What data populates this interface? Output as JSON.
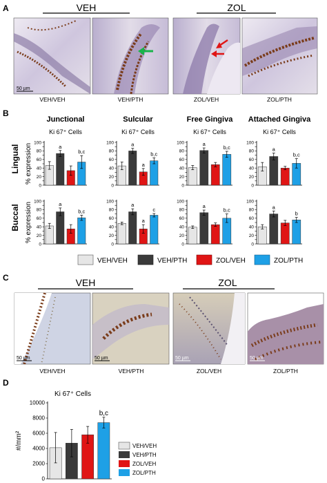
{
  "panels": {
    "A": {
      "letter": "A",
      "groups": [
        "VEH",
        "ZOL"
      ],
      "images": [
        {
          "caption": "VEH/VEH",
          "scale": "50 µm"
        },
        {
          "caption": "VEH/PTH",
          "scale": ""
        },
        {
          "caption": "ZOL/VEH",
          "scale": ""
        },
        {
          "caption": "ZOL/PTH",
          "scale": ""
        }
      ]
    },
    "B": {
      "letter": "B",
      "row_labels": [
        "Lingual",
        "Buccal"
      ],
      "legend": [
        "VEH/VEH",
        "VEH/PTH",
        "ZOL/VEH",
        "ZOL/PTH"
      ]
    },
    "C": {
      "letter": "C",
      "groups": [
        "VEH",
        "ZOL"
      ],
      "images": [
        {
          "caption": "VEH/VEH",
          "scale": "50 µm"
        },
        {
          "caption": "VEH/PTH",
          "scale": "50 µm"
        },
        {
          "caption": "ZOL/VEH",
          "scale": "50 µm"
        },
        {
          "caption": "ZOL/PTH",
          "scale": "50 µm"
        }
      ]
    },
    "D": {
      "letter": "D"
    }
  },
  "colors": {
    "VEH/VEH": "#e6e6e6",
    "VEH/PTH": "#3a3a3a",
    "ZOL/VEH": "#e01515",
    "ZOL/PTH": "#1ea0e6",
    "tissue_bg": "#dcd6e8",
    "stain_brown": "#7a3c1a"
  },
  "chart_data": [
    {
      "type": "bar",
      "panel": "B",
      "row": "Lingual",
      "title": "Junctional",
      "subtitle": "Ki 67⁺ Cells",
      "ylabel": "% expression",
      "categories": [
        "VEH/VEH",
        "VEH/PTH",
        "ZOL/VEH",
        "ZOL/PTH"
      ],
      "values": [
        46,
        74,
        34,
        54
      ],
      "errors": [
        9,
        7,
        11,
        15
      ],
      "annotations": [
        "",
        "a",
        "",
        "b,c"
      ],
      "ylim": [
        0,
        100
      ],
      "yticks": [
        0,
        10,
        20,
        30,
        40,
        50,
        60,
        70,
        80,
        90,
        100
      ]
    },
    {
      "type": "bar",
      "panel": "B",
      "row": "Lingual",
      "title": "Sulcular",
      "subtitle": "Ki 67⁺ Cells",
      "ylabel": "",
      "categories": [
        "VEH/VEH",
        "VEH/PTH",
        "ZOL/VEH",
        "ZOL/PTH"
      ],
      "values": [
        45,
        80,
        31,
        57
      ],
      "errors": [
        9,
        6,
        8,
        7
      ],
      "annotations": [
        "",
        "a",
        "a",
        "b,c"
      ],
      "ylim": [
        0,
        100
      ],
      "yticks": [
        0,
        10,
        20,
        30,
        40,
        50,
        60,
        70,
        80,
        90,
        100
      ]
    },
    {
      "type": "bar",
      "panel": "B",
      "row": "Lingual",
      "title": "Free Gingiva",
      "subtitle": "Ki 67⁺ Cells",
      "ylabel": "",
      "categories": [
        "VEH/VEH",
        "VEH/PTH",
        "ZOL/VEH",
        "ZOL/PTH"
      ],
      "values": [
        41,
        81,
        48,
        72
      ],
      "errors": [
        5,
        6,
        5,
        7
      ],
      "annotations": [
        "",
        "a",
        "",
        "b,c"
      ],
      "ylim": [
        0,
        100
      ],
      "yticks": [
        0,
        10,
        20,
        30,
        40,
        50,
        60,
        70,
        80,
        90,
        100
      ]
    },
    {
      "type": "bar",
      "panel": "B",
      "row": "Lingual",
      "title": "Attached Gingiva",
      "subtitle": "Ki 67⁺ Cells",
      "ylabel": "",
      "categories": [
        "VEH/VEH",
        "VEH/PTH",
        "ZOL/VEH",
        "ZOL/PTH"
      ],
      "values": [
        43,
        67,
        40,
        51
      ],
      "errors": [
        10,
        8,
        4,
        11
      ],
      "annotations": [
        "",
        "a",
        "",
        "b,c"
      ],
      "ylim": [
        0,
        100
      ],
      "yticks": [
        0,
        10,
        20,
        30,
        40,
        50,
        60,
        70,
        80,
        90,
        100
      ]
    },
    {
      "type": "bar",
      "panel": "B",
      "row": "Buccal",
      "title": "",
      "subtitle": "",
      "ylabel": "% expression",
      "categories": [
        "VEH/VEH",
        "VEH/PTH",
        "ZOL/VEH",
        "ZOL/PTH"
      ],
      "values": [
        42,
        75,
        35,
        61
      ],
      "errors": [
        6,
        9,
        10,
        6
      ],
      "annotations": [
        "",
        "a",
        "",
        "b,c"
      ],
      "ylim": [
        0,
        100
      ],
      "yticks": [
        0,
        10,
        20,
        30,
        40,
        50,
        60,
        70,
        80,
        90,
        100
      ]
    },
    {
      "type": "bar",
      "panel": "B",
      "row": "Buccal",
      "title": "",
      "subtitle": "",
      "ylabel": "",
      "categories": [
        "VEH/VEH",
        "VEH/PTH",
        "ZOL/VEH",
        "ZOL/PTH"
      ],
      "values": [
        48,
        75,
        35,
        67
      ],
      "errors": [
        3,
        7,
        10,
        4
      ],
      "annotations": [
        "",
        "a",
        "a",
        "c"
      ],
      "ylim": [
        0,
        100
      ],
      "yticks": [
        0,
        10,
        20,
        30,
        40,
        50,
        60,
        70,
        80,
        90,
        100
      ]
    },
    {
      "type": "bar",
      "panel": "B",
      "row": "Buccal",
      "title": "",
      "subtitle": "",
      "ylabel": "",
      "categories": [
        "VEH/VEH",
        "VEH/PTH",
        "ZOL/VEH",
        "ZOL/PTH"
      ],
      "values": [
        39,
        73,
        45,
        60
      ],
      "errors": [
        3,
        6,
        4,
        10
      ],
      "annotations": [
        "",
        "a",
        "",
        "b,c"
      ],
      "ylim": [
        0,
        100
      ],
      "yticks": [
        0,
        10,
        20,
        30,
        40,
        50,
        60,
        70,
        80,
        90,
        100
      ]
    },
    {
      "type": "bar",
      "panel": "B",
      "row": "Buccal",
      "title": "",
      "subtitle": "",
      "ylabel": "",
      "categories": [
        "VEH/VEH",
        "VEH/PTH",
        "ZOL/VEH",
        "ZOL/PTH"
      ],
      "values": [
        40,
        70,
        49,
        56
      ],
      "errors": [
        5,
        7,
        6,
        6
      ],
      "annotations": [
        "",
        "a",
        "",
        "b"
      ],
      "ylim": [
        0,
        100
      ],
      "yticks": [
        0,
        10,
        20,
        30,
        40,
        50,
        60,
        70,
        80,
        90,
        100
      ]
    },
    {
      "type": "bar",
      "panel": "D",
      "title": "Ki 67⁺ Cells",
      "subtitle": "",
      "ylabel": "#/mm²",
      "categories": [
        "VEH/VEH",
        "VEH/PTH",
        "ZOL/VEH",
        "ZOL/PTH"
      ],
      "values": [
        4100,
        4700,
        5800,
        7400
      ],
      "errors": [
        2000,
        1800,
        1100,
        700
      ],
      "annotations": [
        "",
        "",
        "",
        "b,c"
      ],
      "ylim": [
        0,
        10000
      ],
      "yticks": [
        0,
        2000,
        4000,
        6000,
        8000,
        10000
      ],
      "legend": [
        "VEH/VEH",
        "VEH/PTH",
        "ZOL/VEH",
        "ZOL/PTH"
      ]
    }
  ]
}
